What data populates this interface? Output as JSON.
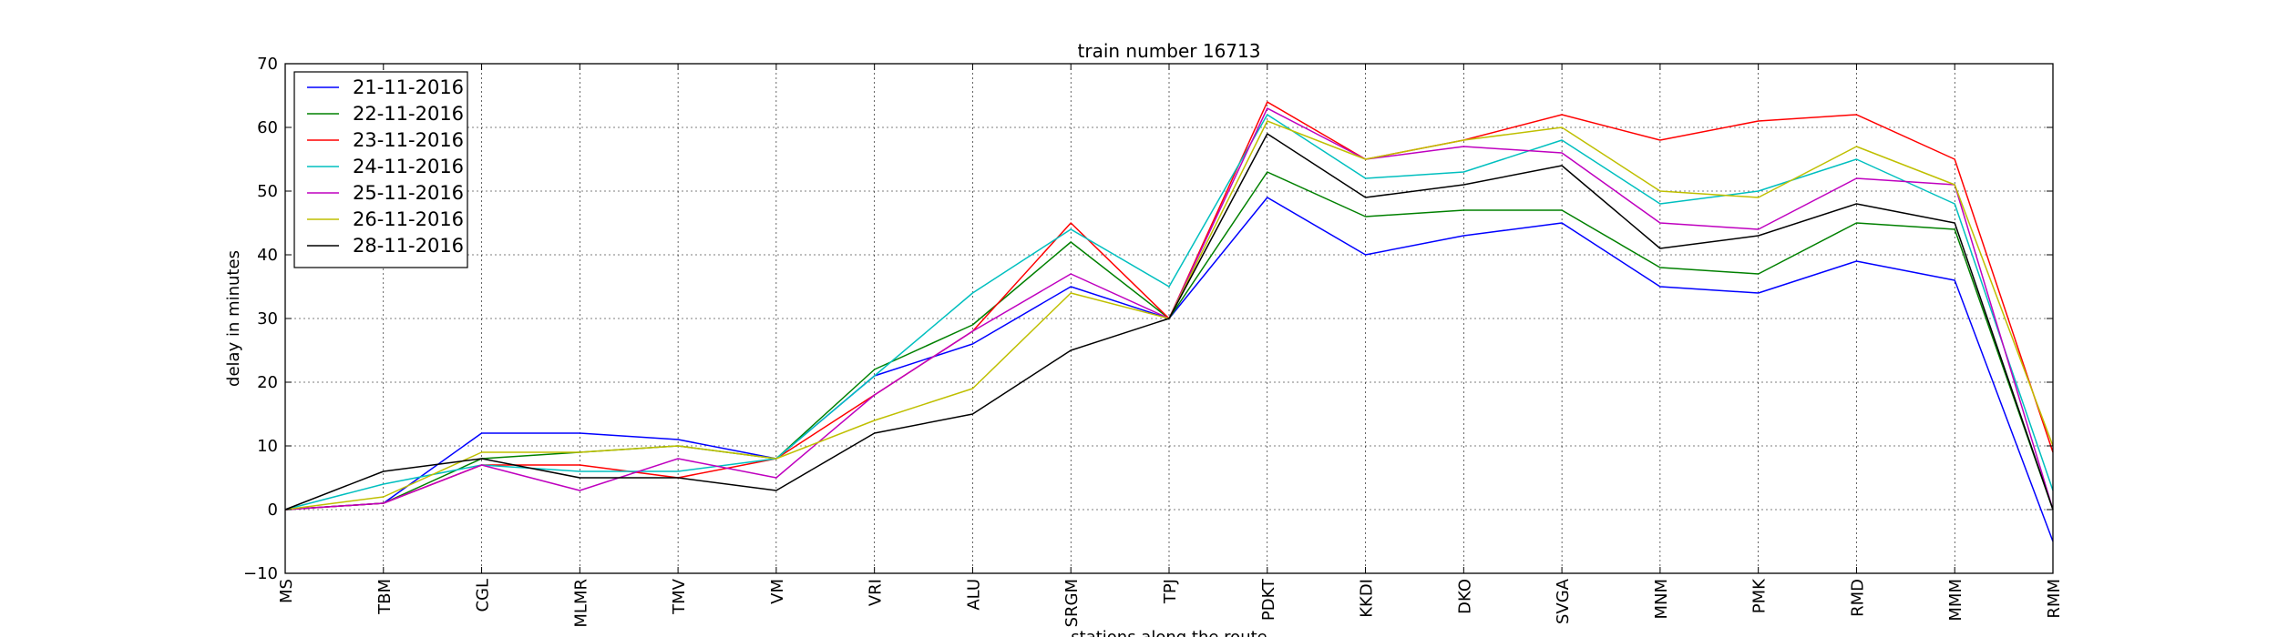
{
  "chart_data": {
    "type": "line",
    "title": "train number 16713",
    "xlabel": "stations along the route",
    "ylabel": "delay in minutes",
    "categories": [
      "MS",
      "TBM",
      "CGL",
      "MLMR",
      "TMV",
      "VM",
      "VRI",
      "ALU",
      "SRGM",
      "TPJ",
      "PDKT",
      "KKDI",
      "DKO",
      "SVGA",
      "MNM",
      "PMK",
      "RMD",
      "MMM",
      "RMM"
    ],
    "ylim": [
      -10,
      70
    ],
    "yticks": [
      -10,
      0,
      10,
      20,
      30,
      40,
      50,
      60,
      70
    ],
    "grid": true,
    "legend_position": "top-left",
    "series": [
      {
        "name": "21-11-2016",
        "color": "#0000ff",
        "values": [
          0,
          1,
          12,
          12,
          11,
          8,
          21,
          26,
          35,
          30,
          49,
          40,
          43,
          45,
          35,
          34,
          39,
          36,
          -5
        ]
      },
      {
        "name": "22-11-2016",
        "color": "#008000",
        "values": [
          0,
          1,
          8,
          9,
          10,
          8,
          22,
          29,
          42,
          30,
          53,
          46,
          47,
          47,
          38,
          37,
          45,
          44,
          0
        ]
      },
      {
        "name": "23-11-2016",
        "color": "#ff0000",
        "values": [
          0,
          1,
          7,
          7,
          5,
          8,
          18,
          28,
          45,
          30,
          64,
          55,
          58,
          62,
          58,
          61,
          62,
          55,
          9
        ]
      },
      {
        "name": "24-11-2016",
        "color": "#00bfbf",
        "values": [
          0,
          4,
          7,
          6,
          6,
          8,
          21,
          34,
          44,
          35,
          62,
          52,
          53,
          58,
          48,
          50,
          55,
          48,
          3
        ]
      },
      {
        "name": "25-11-2016",
        "color": "#bf00bf",
        "values": [
          0,
          1,
          7,
          3,
          8,
          5,
          18,
          28,
          37,
          30,
          63,
          55,
          57,
          56,
          45,
          44,
          52,
          51,
          0
        ]
      },
      {
        "name": "26-11-2016",
        "color": "#bfbf00",
        "values": [
          0,
          2,
          9,
          9,
          10,
          8,
          14,
          19,
          34,
          30,
          61,
          55,
          58,
          60,
          50,
          49,
          57,
          51,
          10
        ]
      },
      {
        "name": "28-11-2016",
        "color": "#000000",
        "values": [
          0,
          6,
          8,
          5,
          5,
          3,
          12,
          15,
          25,
          30,
          59,
          49,
          51,
          54,
          41,
          43,
          48,
          45,
          0
        ]
      }
    ]
  }
}
